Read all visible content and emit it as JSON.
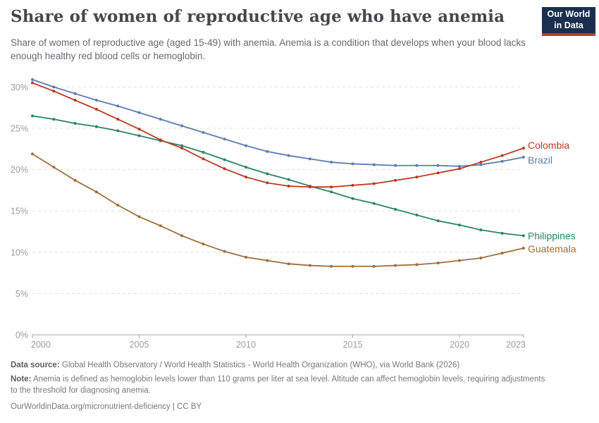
{
  "logo": {
    "line1": "Our World",
    "line2": "in Data",
    "navy": "#1b2f4f",
    "red": "#c2342c"
  },
  "chart_data": {
    "type": "line",
    "title": "Share of women of reproductive age who have anemia",
    "subtitle": "Share of women of reproductive age (aged 15-49) with anemia. Anemia is a condition that develops when your blood lacks enough healthy red blood cells or hemoglobin.",
    "x": [
      2000,
      2001,
      2002,
      2003,
      2004,
      2005,
      2006,
      2007,
      2008,
      2009,
      2010,
      2011,
      2012,
      2013,
      2014,
      2015,
      2016,
      2017,
      2018,
      2019,
      2020,
      2021,
      2022,
      2023
    ],
    "series": [
      {
        "name": "Colombia",
        "color": "#ba3a22",
        "values": [
          30.5,
          29.5,
          28.4,
          27.3,
          26.1,
          24.9,
          23.6,
          22.6,
          21.3,
          20.1,
          19.1,
          18.4,
          18.0,
          17.9,
          17.9,
          18.1,
          18.3,
          18.7,
          19.1,
          19.6,
          20.1,
          20.9,
          21.7,
          22.6
        ]
      },
      {
        "name": "Brazil",
        "color": "#5b7db1",
        "values": [
          30.9,
          30.0,
          29.2,
          28.4,
          27.7,
          26.9,
          26.1,
          25.3,
          24.5,
          23.7,
          22.9,
          22.2,
          21.7,
          21.3,
          20.9,
          20.7,
          20.6,
          20.5,
          20.5,
          20.5,
          20.4,
          20.6,
          21.0,
          21.5
        ]
      },
      {
        "name": "Philippines",
        "color": "#2c8465",
        "values": [
          26.5,
          26.1,
          25.6,
          25.2,
          24.7,
          24.1,
          23.5,
          22.9,
          22.1,
          21.2,
          20.3,
          19.5,
          18.8,
          18.0,
          17.3,
          16.5,
          15.9,
          15.2,
          14.5,
          13.8,
          13.3,
          12.7,
          12.3,
          12.0
        ]
      },
      {
        "name": "Guatemala",
        "color": "#9d6f3a",
        "values": [
          21.9,
          20.3,
          18.7,
          17.3,
          15.7,
          14.3,
          13.2,
          12.0,
          11.0,
          10.1,
          9.4,
          9.0,
          8.6,
          8.4,
          8.3,
          8.3,
          8.3,
          8.4,
          8.5,
          8.7,
          9.0,
          9.3,
          9.9,
          10.5
        ]
      }
    ],
    "yticks": [
      0,
      5,
      10,
      15,
      20,
      25,
      30
    ],
    "ytick_suffix": "%",
    "ylim": [
      0,
      31
    ],
    "xticks": [
      2000,
      2005,
      2010,
      2015,
      2020,
      2023
    ],
    "grid": "horizontal-dashed",
    "legend_position": "end-of-line-labels"
  },
  "footer": {
    "source_label": "Data source:",
    "source_text": "Global Health Observatory / World Health Statistics - World Health Organization (WHO), via World Bank (2026)",
    "note_label": "Note:",
    "note_text": "Anemia is defined as hemoglobin levels lower than 110 grams per liter at sea level. Altitude can affect hemoglobin levels, requiring adjustments to the threshold for diagnosing anemia.",
    "credit": "OurWorldinData.org/micronutrient-deficiency | CC BY"
  }
}
